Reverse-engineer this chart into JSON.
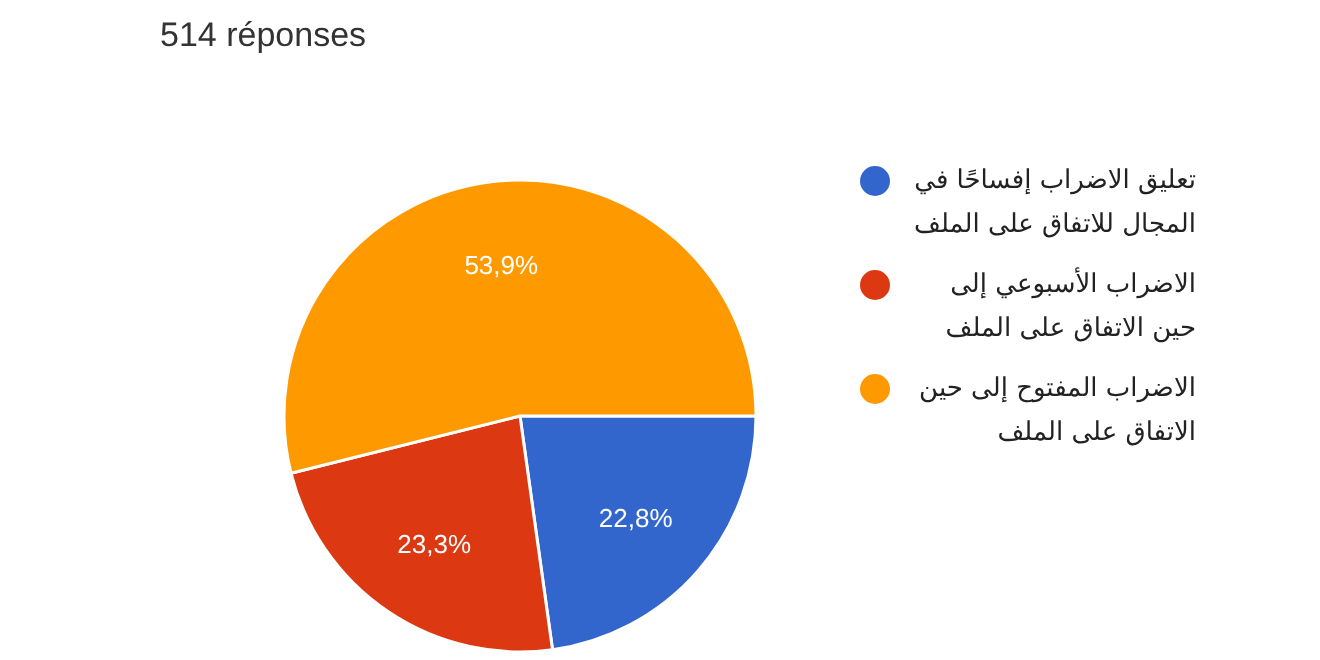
{
  "chart_data": {
    "type": "pie",
    "title": "514 réponses",
    "categories": [
      "تعليق الاضراب إفساحًا في المجال للاتفاق على الملف",
      "الاضراب الأسبوعي إلى حين الاتفاق على الملف",
      "الاضراب المفتوح إلى حين الاتفاق على الملف"
    ],
    "values": [
      22.8,
      23.3,
      53.9
    ],
    "colors": [
      "#3366cc",
      "#dc3912",
      "#ff9900"
    ],
    "value_labels": [
      "22,8%",
      "23,3%",
      "53,9%"
    ],
    "legend": "right"
  }
}
